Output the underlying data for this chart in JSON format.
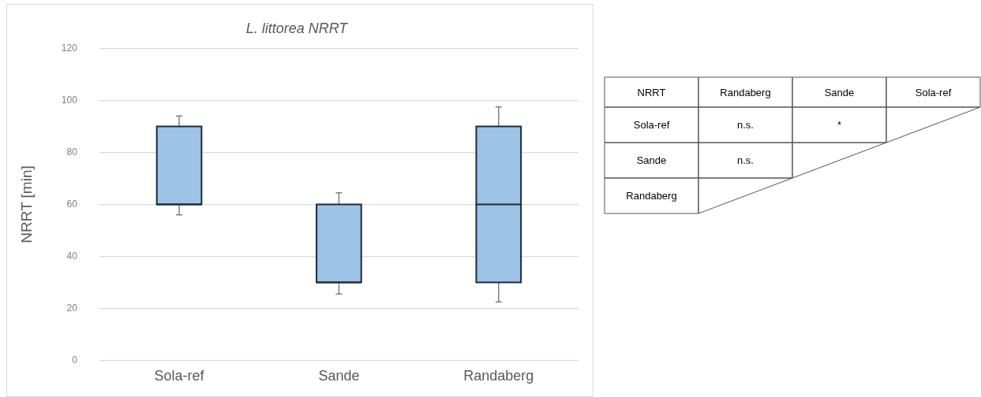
{
  "chart_data": [
    {
      "type": "box",
      "title": "L. littorea NRRT",
      "ylabel": "NRRT [min]",
      "categories": [
        "Sola-ref",
        "Sande",
        "Randaberg"
      ],
      "boxes": [
        {
          "low": 56,
          "q1": 60,
          "median": 60,
          "q3": 90,
          "high": 94
        },
        {
          "low": 25.5,
          "q1": 30,
          "median": 30,
          "q3": 60,
          "high": 64.5
        },
        {
          "low": 22.5,
          "q1": 30,
          "median": 60,
          "q3": 90,
          "high": 97.5
        }
      ],
      "color": "#9dc3e6",
      "ylim": [
        0,
        120
      ],
      "yticks": [
        0,
        20,
        40,
        60,
        80,
        100,
        120
      ],
      "grid": "y",
      "legend": false
    },
    {
      "type": "other",
      "title": "NRRT",
      "categories": [
        "Randaberg",
        "Sande",
        "Sola-ref"
      ],
      "y_categories": [
        "Sola-ref",
        "Sande",
        "Randaberg"
      ],
      "cell_labels": [
        [
          "n.s.",
          "*",
          null
        ],
        [
          "n.s.",
          null,
          null
        ],
        [
          null,
          null,
          null
        ]
      ]
    }
  ]
}
